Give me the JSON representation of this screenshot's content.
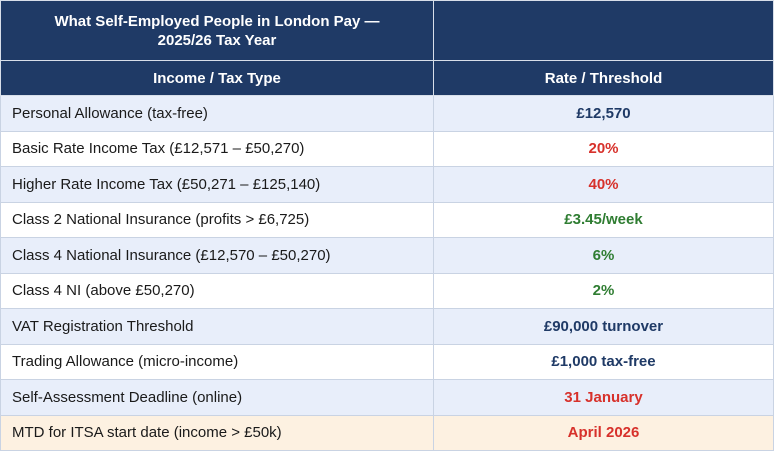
{
  "table": {
    "title": "What Self-Employed People in London Pay — 2025/26 Tax Year",
    "title_line1": "What Self-Employed People in London Pay —",
    "title_line2": "2025/26 Tax Year",
    "columns": [
      "Income / Tax Type",
      "Rate / Threshold"
    ],
    "rows": [
      {
        "label": "Personal Allowance (tax-free)",
        "value": "£12,570",
        "value_color": "#1f3a66",
        "row_bg": "#e8eefa"
      },
      {
        "label": "Basic Rate Income Tax (£12,571 – £50,270)",
        "value": "20%",
        "value_color": "#d7312b",
        "row_bg": "#ffffff"
      },
      {
        "label": "Higher Rate Income Tax (£50,271 – £125,140)",
        "value": "40%",
        "value_color": "#d7312b",
        "row_bg": "#e8eefa"
      },
      {
        "label": "Class 2 National Insurance (profits > £6,725)",
        "value": "£3.45/week",
        "value_color": "#2f7d32",
        "row_bg": "#ffffff"
      },
      {
        "label": "Class 4 National Insurance (£12,570 – £50,270)",
        "value": "6%",
        "value_color": "#2f7d32",
        "row_bg": "#e8eefa"
      },
      {
        "label": "Class 4 NI (above £50,270)",
        "value": "2%",
        "value_color": "#2f7d32",
        "row_bg": "#ffffff"
      },
      {
        "label": "VAT Registration Threshold",
        "value": "£90,000 turnover",
        "value_color": "#1f3a66",
        "row_bg": "#e8eefa"
      },
      {
        "label": "Trading Allowance (micro-income)",
        "value": "£1,000 tax-free",
        "value_color": "#1f3a66",
        "row_bg": "#ffffff"
      },
      {
        "label": "Self-Assessment Deadline (online)",
        "value": "31 January",
        "value_color": "#d7312b",
        "row_bg": "#e8eefa"
      },
      {
        "label": "MTD for ITSA start date (income > £50k)",
        "value": "April 2026",
        "value_color": "#d7312b",
        "row_bg": "#fdf1e1"
      }
    ],
    "colors": {
      "header_bg": "#1f3a66",
      "header_text": "#ffffff",
      "navy": "#1f3a66",
      "red": "#d7312b",
      "green": "#2f7d32",
      "shaded_row": "#e8eefa",
      "highlight_row": "#fdf1e1"
    }
  }
}
